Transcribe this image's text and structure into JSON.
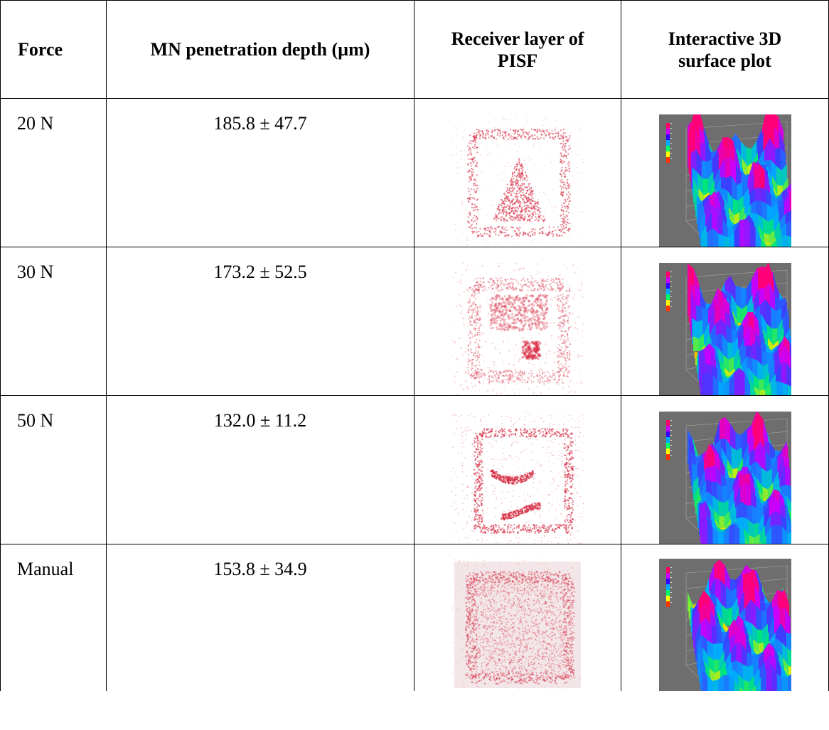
{
  "table": {
    "headers": {
      "force": "Force",
      "depth": "MN penetration depth (µm)",
      "receiver": "Receiver layer of PISF",
      "surface": "Interactive 3D surface plot"
    },
    "rows": [
      {
        "force": "20 N",
        "depth": "185.8 ± 47.7"
      },
      {
        "force": "30 N",
        "depth": "173.2 ± 52.5"
      },
      {
        "force": "50 N",
        "depth": "132.0 ± 11.2"
      },
      {
        "force": "Manual",
        "depth": "153.8 ± 34.9"
      }
    ]
  },
  "colors": {
    "stain": "#d6283f",
    "plot_background": "#6e6e6e",
    "colorbar": [
      "#ff0066",
      "#cc00ff",
      "#3300ff",
      "#00aaff",
      "#00ff66",
      "#ffff00",
      "#ff3300"
    ]
  }
}
